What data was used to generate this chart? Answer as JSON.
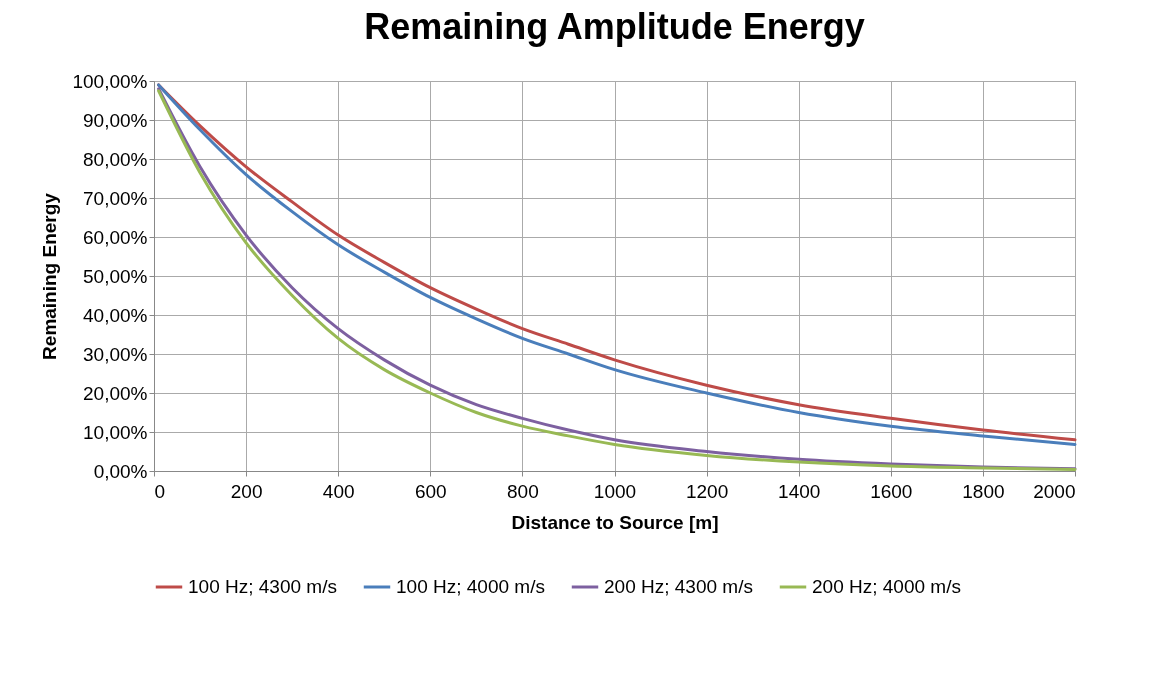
{
  "chart_data": {
    "type": "line",
    "title": "Remaining Amplitude Energy",
    "xlabel": "Distance to Source [m]",
    "ylabel": "Remaining Energy",
    "x": [
      10,
      100,
      200,
      300,
      400,
      500,
      600,
      700,
      800,
      900,
      1000,
      1200,
      1400,
      1600,
      1800,
      2000
    ],
    "series": [
      {
        "name": "100 Hz; 4300 m/s",
        "color": "#be4b48",
        "values": [
          99,
          88.5,
          78,
          69,
          60.5,
          53.5,
          47,
          41.5,
          36.5,
          32.5,
          28.5,
          22,
          17,
          13.5,
          10.5,
          8
        ]
      },
      {
        "name": "100 Hz; 4000 m/s",
        "color": "#4a7ebb",
        "values": [
          99,
          87.5,
          76,
          66.5,
          58,
          51,
          44.5,
          39,
          34,
          30,
          26,
          20,
          15,
          11.5,
          9,
          6.8
        ]
      },
      {
        "name": "200 Hz; 4300 m/s",
        "color": "#7d60a0",
        "values": [
          98,
          78,
          60.5,
          47,
          36.5,
          28.5,
          22,
          17,
          13.5,
          10.5,
          8,
          5,
          3,
          1.8,
          1,
          0.6
        ]
      },
      {
        "name": "200 Hz; 4000 m/s",
        "color": "#98b954",
        "values": [
          97.5,
          76.5,
          58.5,
          45,
          34,
          26,
          20,
          15,
          11.5,
          9,
          6.8,
          4,
          2.3,
          1.3,
          0.8,
          0.4
        ]
      }
    ],
    "xlim": [
      0,
      2000
    ],
    "xticks": [
      0,
      200,
      400,
      600,
      800,
      1000,
      1200,
      1400,
      1600,
      1800,
      2000
    ],
    "ylim": [
      0,
      100
    ],
    "yticks": [
      {
        "value": 0,
        "label": "0,00%"
      },
      {
        "value": 10,
        "label": "10,00%"
      },
      {
        "value": 20,
        "label": "20,00%"
      },
      {
        "value": 30,
        "label": "30,00%"
      },
      {
        "value": 40,
        "label": "40,00%"
      },
      {
        "value": 50,
        "label": "50,00%"
      },
      {
        "value": 60,
        "label": "60,00%"
      },
      {
        "value": 70,
        "label": "70,00%"
      },
      {
        "value": 80,
        "label": "80,00%"
      },
      {
        "value": 90,
        "label": "90,00%"
      },
      {
        "value": 100,
        "label": "100,00%"
      }
    ],
    "grid": true,
    "legend": "bottom",
    "marker": "none",
    "line_style": "solid"
  }
}
